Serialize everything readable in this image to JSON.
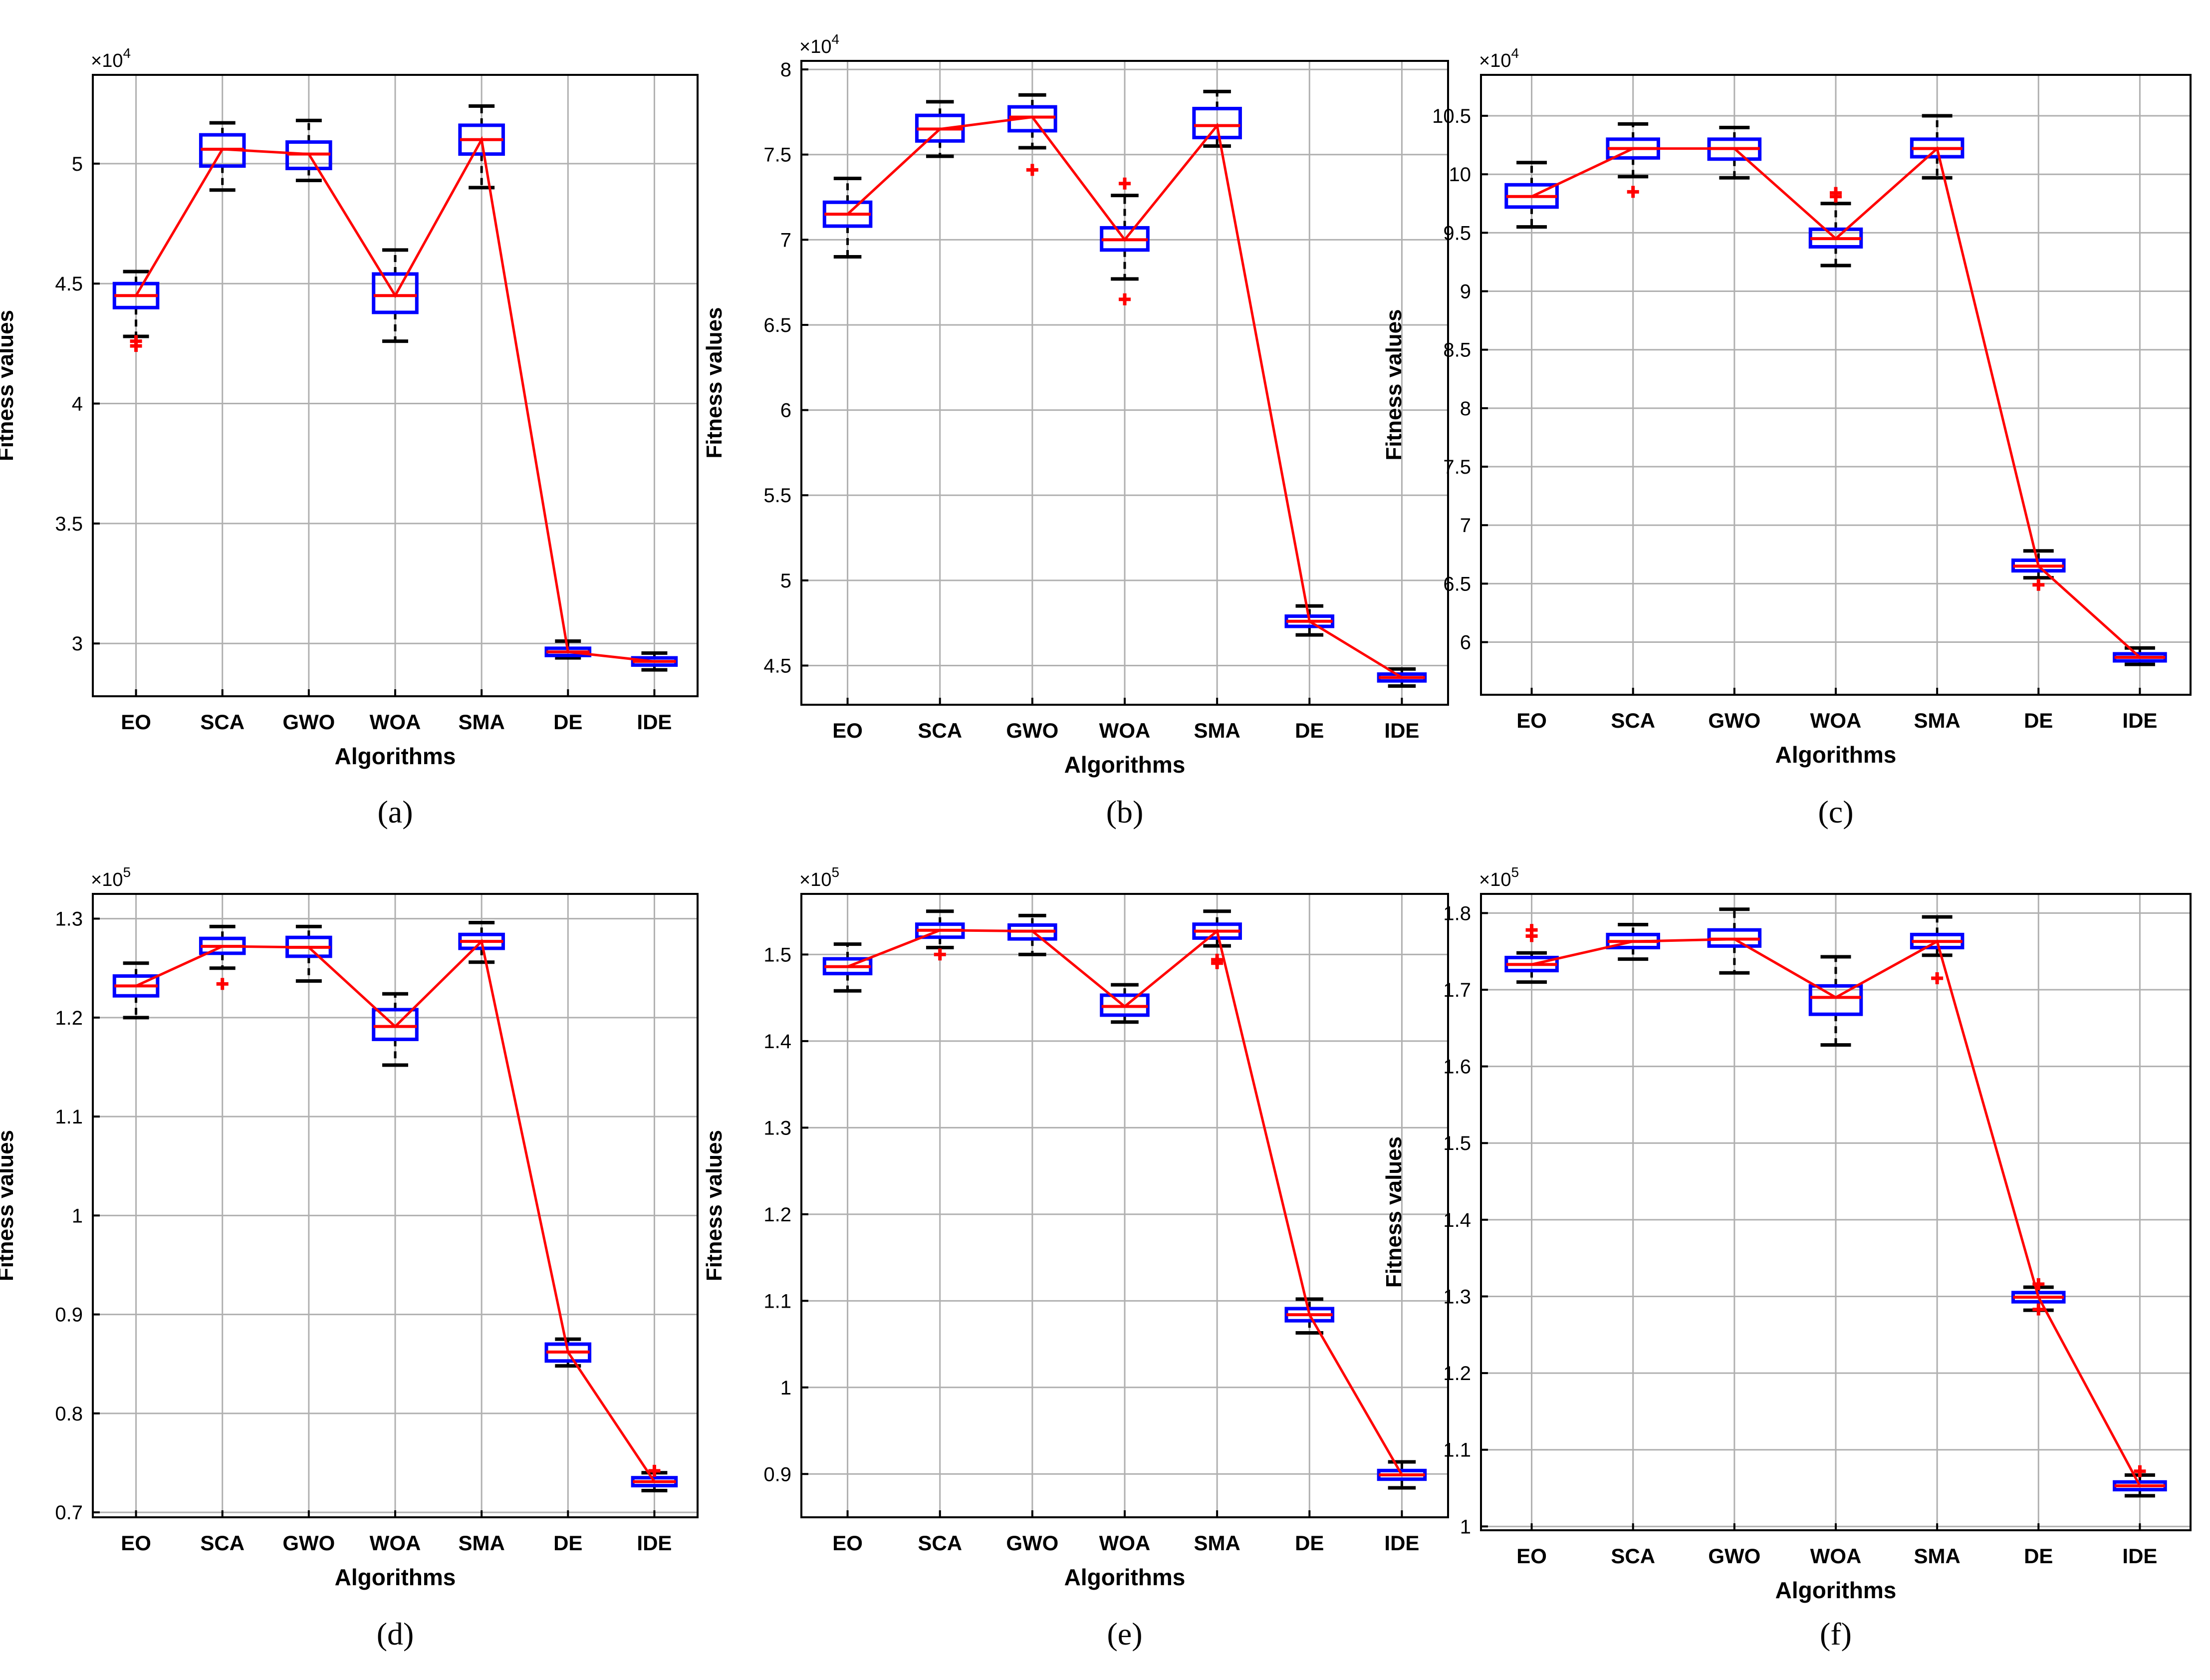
{
  "figure": {
    "colors": {
      "box": "#0000ff",
      "median": "#ff0000",
      "meanLine": "#ff0000",
      "outlier": "#ff0000",
      "whisker": "#000000",
      "grid": "#b0b0b0",
      "axis": "#000000"
    }
  },
  "chart_data": [
    {
      "panel": "(a)",
      "type": "box",
      "title": "",
      "xlabel": "Algorithms",
      "ylabel": "Fitness values",
      "multiplier": "×10",
      "exponent": "4",
      "categories": [
        "EO",
        "SCA",
        "GWO",
        "WOA",
        "SMA",
        "DE",
        "IDE"
      ],
      "ylim": [
        2.78,
        5.37
      ],
      "yticks": [
        3,
        3.5,
        4,
        4.5,
        5
      ],
      "ytick_labels": [
        "3",
        "3.5",
        "4",
        "4.5",
        "5"
      ],
      "grid": true,
      "boxes": [
        {
          "q1": 4.4,
          "median": 4.45,
          "q3": 4.5,
          "wlo": 4.28,
          "whi": 4.55,
          "outliers": [
            4.24,
            4.26
          ]
        },
        {
          "q1": 4.99,
          "median": 5.06,
          "q3": 5.12,
          "wlo": 4.89,
          "whi": 5.17,
          "outliers": []
        },
        {
          "q1": 4.98,
          "median": 5.04,
          "q3": 5.09,
          "wlo": 4.93,
          "whi": 5.18,
          "outliers": []
        },
        {
          "q1": 4.38,
          "median": 4.45,
          "q3": 4.54,
          "wlo": 4.26,
          "whi": 4.64,
          "outliers": []
        },
        {
          "q1": 5.04,
          "median": 5.1,
          "q3": 5.16,
          "wlo": 4.9,
          "whi": 5.24,
          "outliers": []
        },
        {
          "q1": 2.95,
          "median": 2.965,
          "q3": 2.98,
          "wlo": 2.94,
          "whi": 3.01,
          "outliers": []
        },
        {
          "q1": 2.91,
          "median": 2.925,
          "q3": 2.94,
          "wlo": 2.89,
          "whi": 2.96,
          "outliers": []
        }
      ],
      "mean_line": [
        4.45,
        5.06,
        5.04,
        4.45,
        5.1,
        2.965,
        2.925
      ]
    },
    {
      "panel": "(b)",
      "type": "box",
      "title": "",
      "xlabel": "Algorithms",
      "ylabel": "Fitness values",
      "multiplier": "×10",
      "exponent": "4",
      "categories": [
        "EO",
        "SCA",
        "GWO",
        "WOA",
        "SMA",
        "DE",
        "IDE"
      ],
      "ylim": [
        4.27,
        8.05
      ],
      "yticks": [
        4.5,
        5,
        5.5,
        6,
        6.5,
        7,
        7.5,
        8
      ],
      "ytick_labels": [
        "4.5",
        "5",
        "5.5",
        "6",
        "6.5",
        "7",
        "7.5",
        "8"
      ],
      "grid": true,
      "boxes": [
        {
          "q1": 7.08,
          "median": 7.15,
          "q3": 7.22,
          "wlo": 6.9,
          "whi": 7.36,
          "outliers": []
        },
        {
          "q1": 7.58,
          "median": 7.65,
          "q3": 7.73,
          "wlo": 7.49,
          "whi": 7.81,
          "outliers": []
        },
        {
          "q1": 7.64,
          "median": 7.72,
          "q3": 7.78,
          "wlo": 7.54,
          "whi": 7.85,
          "outliers": [
            7.41
          ]
        },
        {
          "q1": 6.94,
          "median": 7.0,
          "q3": 7.07,
          "wlo": 6.77,
          "whi": 7.26,
          "outliers": [
            7.33,
            6.65
          ]
        },
        {
          "q1": 7.6,
          "median": 7.67,
          "q3": 7.77,
          "wlo": 7.55,
          "whi": 7.87,
          "outliers": []
        },
        {
          "q1": 4.73,
          "median": 4.76,
          "q3": 4.79,
          "wlo": 4.68,
          "whi": 4.85,
          "outliers": []
        },
        {
          "q1": 4.41,
          "median": 4.43,
          "q3": 4.45,
          "wlo": 4.38,
          "whi": 4.48,
          "outliers": []
        }
      ],
      "mean_line": [
        7.15,
        7.65,
        7.72,
        7.0,
        7.67,
        4.76,
        4.43
      ]
    },
    {
      "panel": "(c)",
      "type": "box",
      "title": "",
      "xlabel": "Algorithms",
      "ylabel": "Fitness values",
      "multiplier": "×10",
      "exponent": "4",
      "categories": [
        "EO",
        "SCA",
        "GWO",
        "WOA",
        "SMA",
        "DE",
        "IDE"
      ],
      "ylim": [
        5.55,
        10.85
      ],
      "yticks": [
        6,
        6.5,
        7,
        7.5,
        8,
        8.5,
        9,
        9.5,
        10,
        10.5
      ],
      "ytick_labels": [
        "6",
        "6.5",
        "7",
        "7.5",
        "8",
        "8.5",
        "9",
        "9.5",
        "10",
        "10.5"
      ],
      "grid": true,
      "boxes": [
        {
          "q1": 9.72,
          "median": 9.81,
          "q3": 9.91,
          "wlo": 9.55,
          "whi": 10.1,
          "outliers": []
        },
        {
          "q1": 10.14,
          "median": 10.22,
          "q3": 10.3,
          "wlo": 9.98,
          "whi": 10.43,
          "outliers": [
            9.85
          ]
        },
        {
          "q1": 10.13,
          "median": 10.22,
          "q3": 10.3,
          "wlo": 9.97,
          "whi": 10.4,
          "outliers": []
        },
        {
          "q1": 9.38,
          "median": 9.45,
          "q3": 9.53,
          "wlo": 9.22,
          "whi": 9.75,
          "outliers": [
            9.81,
            9.84
          ]
        },
        {
          "q1": 10.15,
          "median": 10.22,
          "q3": 10.3,
          "wlo": 9.97,
          "whi": 10.5,
          "outliers": []
        },
        {
          "q1": 6.61,
          "median": 6.65,
          "q3": 6.7,
          "wlo": 6.55,
          "whi": 6.78,
          "outliers": [
            6.49
          ]
        },
        {
          "q1": 5.84,
          "median": 5.87,
          "q3": 5.9,
          "wlo": 5.81,
          "whi": 5.95,
          "outliers": []
        }
      ],
      "mean_line": [
        9.81,
        10.22,
        10.22,
        9.45,
        10.22,
        6.65,
        5.87
      ]
    },
    {
      "panel": "(d)",
      "type": "box",
      "title": "",
      "xlabel": "Algorithms",
      "ylabel": "Fitness values",
      "multiplier": "×10",
      "exponent": "5",
      "categories": [
        "EO",
        "SCA",
        "GWO",
        "WOA",
        "SMA",
        "DE",
        "IDE"
      ],
      "ylim": [
        0.695,
        1.325
      ],
      "yticks": [
        0.7,
        0.8,
        0.9,
        1,
        1.1,
        1.2,
        1.3
      ],
      "ytick_labels": [
        "0.7",
        "0.8",
        "0.9",
        "1",
        "1.1",
        "1.2",
        "1.3"
      ],
      "grid": true,
      "boxes": [
        {
          "q1": 1.222,
          "median": 1.232,
          "q3": 1.242,
          "wlo": 1.2,
          "whi": 1.255,
          "outliers": []
        },
        {
          "q1": 1.265,
          "median": 1.272,
          "q3": 1.28,
          "wlo": 1.25,
          "whi": 1.292,
          "outliers": [
            1.234
          ]
        },
        {
          "q1": 1.262,
          "median": 1.271,
          "q3": 1.281,
          "wlo": 1.237,
          "whi": 1.292,
          "outliers": []
        },
        {
          "q1": 1.178,
          "median": 1.191,
          "q3": 1.208,
          "wlo": 1.152,
          "whi": 1.224,
          "outliers": []
        },
        {
          "q1": 1.27,
          "median": 1.277,
          "q3": 1.284,
          "wlo": 1.256,
          "whi": 1.296,
          "outliers": []
        },
        {
          "q1": 0.853,
          "median": 0.862,
          "q3": 0.87,
          "wlo": 0.848,
          "whi": 0.875,
          "outliers": []
        },
        {
          "q1": 0.727,
          "median": 0.731,
          "q3": 0.735,
          "wlo": 0.722,
          "whi": 0.74,
          "outliers": [
            0.742
          ]
        }
      ],
      "mean_line": [
        1.232,
        1.272,
        1.271,
        1.191,
        1.277,
        0.862,
        0.731
      ]
    },
    {
      "panel": "(e)",
      "type": "box",
      "title": "",
      "xlabel": "Algorithms",
      "ylabel": "Fitness values",
      "multiplier": "×10",
      "exponent": "5",
      "categories": [
        "EO",
        "SCA",
        "GWO",
        "WOA",
        "SMA",
        "DE",
        "IDE"
      ],
      "ylim": [
        0.85,
        1.57
      ],
      "yticks": [
        0.9,
        1,
        1.1,
        1.2,
        1.3,
        1.4,
        1.5
      ],
      "ytick_labels": [
        "0.9",
        "1",
        "1.1",
        "1.2",
        "1.3",
        "1.4",
        "1.5"
      ],
      "grid": true,
      "boxes": [
        {
          "q1": 1.478,
          "median": 1.486,
          "q3": 1.495,
          "wlo": 1.458,
          "whi": 1.512,
          "outliers": []
        },
        {
          "q1": 1.52,
          "median": 1.528,
          "q3": 1.535,
          "wlo": 1.508,
          "whi": 1.55,
          "outliers": [
            1.5
          ]
        },
        {
          "q1": 1.518,
          "median": 1.527,
          "q3": 1.534,
          "wlo": 1.5,
          "whi": 1.545,
          "outliers": []
        },
        {
          "q1": 1.43,
          "median": 1.44,
          "q3": 1.453,
          "wlo": 1.422,
          "whi": 1.465,
          "outliers": []
        },
        {
          "q1": 1.519,
          "median": 1.527,
          "q3": 1.535,
          "wlo": 1.51,
          "whi": 1.55,
          "outliers": [
            1.494,
            1.49
          ]
        },
        {
          "q1": 1.077,
          "median": 1.084,
          "q3": 1.091,
          "wlo": 1.063,
          "whi": 1.102,
          "outliers": []
        },
        {
          "q1": 0.894,
          "median": 0.899,
          "q3": 0.904,
          "wlo": 0.884,
          "whi": 0.914,
          "outliers": []
        }
      ],
      "mean_line": [
        1.486,
        1.528,
        1.527,
        1.44,
        1.527,
        1.084,
        0.899
      ]
    },
    {
      "panel": "(f)",
      "type": "box",
      "title": "",
      "xlabel": "Algorithms",
      "ylabel": "Fitness values",
      "multiplier": "×10",
      "exponent": "5",
      "categories": [
        "EO",
        "SCA",
        "GWO",
        "WOA",
        "SMA",
        "DE",
        "IDE"
      ],
      "ylim": [
        0.995,
        1.825
      ],
      "yticks": [
        1,
        1.1,
        1.2,
        1.3,
        1.4,
        1.5,
        1.6,
        1.7,
        1.8
      ],
      "ytick_labels": [
        "1",
        "1.1",
        "1.2",
        "1.3",
        "1.4",
        "1.5",
        "1.6",
        "1.7",
        "1.8"
      ],
      "grid": true,
      "boxes": [
        {
          "q1": 1.725,
          "median": 1.733,
          "q3": 1.742,
          "wlo": 1.71,
          "whi": 1.748,
          "outliers": [
            1.77,
            1.778
          ]
        },
        {
          "q1": 1.755,
          "median": 1.763,
          "q3": 1.772,
          "wlo": 1.74,
          "whi": 1.785,
          "outliers": []
        },
        {
          "q1": 1.757,
          "median": 1.766,
          "q3": 1.778,
          "wlo": 1.722,
          "whi": 1.805,
          "outliers": []
        },
        {
          "q1": 1.668,
          "median": 1.69,
          "q3": 1.705,
          "wlo": 1.628,
          "whi": 1.743,
          "outliers": []
        },
        {
          "q1": 1.755,
          "median": 1.763,
          "q3": 1.772,
          "wlo": 1.745,
          "whi": 1.795,
          "outliers": [
            1.715
          ]
        },
        {
          "q1": 1.293,
          "median": 1.299,
          "q3": 1.305,
          "wlo": 1.282,
          "whi": 1.312,
          "outliers": [
            1.283,
            1.316
          ]
        },
        {
          "q1": 1.048,
          "median": 1.053,
          "q3": 1.058,
          "wlo": 1.04,
          "whi": 1.067,
          "outliers": [
            1.072
          ]
        }
      ],
      "mean_line": [
        1.733,
        1.763,
        1.766,
        1.69,
        1.763,
        1.299,
        1.053
      ]
    }
  ]
}
